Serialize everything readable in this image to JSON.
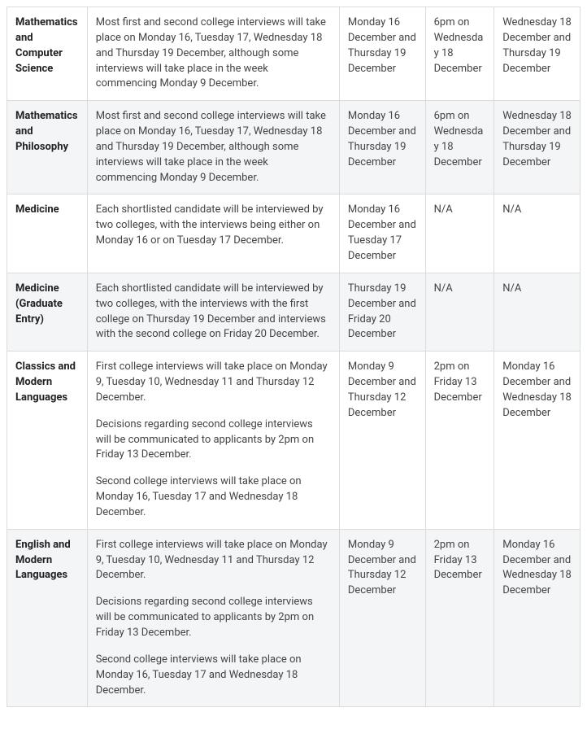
{
  "table": {
    "border_color": "#dcdcdc",
    "row_alt_bg": "#f3f5f7",
    "row_bg": "#ffffff",
    "text_color": "#333333",
    "rows": [
      {
        "alt": false,
        "subject": "Mathematics and Computer Science",
        "desc": [
          "Most first and second college interviews will take place on Monday 16, Tuesday 17, Wednesday 18 and Thursday 19 December, although some interviews will take place in the week commencing Monday 9 December."
        ],
        "col3": "Monday 16 December and Thursday 19 December",
        "col4": "6pm on Wednesday 18 December",
        "col5": "Wednesday 18 December and Thursday 19 December"
      },
      {
        "alt": true,
        "subject": "Mathematics and Philosophy",
        "desc": [
          "Most first and second college interviews will take place on Monday 16, Tuesday 17, Wednesday 18 and Thursday 19 December, although some interviews will take place in the week commencing Monday 9 December."
        ],
        "col3": "Monday 16 December and Thursday 19 December",
        "col4": "6pm on Wednesday 18 December",
        "col5": "Wednesday 18 December and Thursday 19 December"
      },
      {
        "alt": false,
        "subject": "Medicine",
        "desc": [
          "Each shortlisted candidate will be interviewed by two colleges, with the interviews being either on Monday 16 or on Tuesday 17 December."
        ],
        "col3": "Monday 16 December and Tuesday 17 December",
        "col4": "N/A",
        "col5": "N/A"
      },
      {
        "alt": true,
        "subject": "Medicine (Graduate Entry)",
        "desc": [
          "Each shortlisted candidate will be interviewed by two colleges, with the interviews with the first college on Thursday 19 December and interviews with the second college on Friday 20 December."
        ],
        "col3": "Thursday 19 December and Friday 20 December",
        "col4": "N/A",
        "col5": "N/A"
      },
      {
        "alt": false,
        "subject": "Classics and Modern Languages",
        "desc": [
          "First college interviews will take place on Monday 9, Tuesday 10, Wednesday 11 and Thursday 12 December.",
          "Decisions regarding second college interviews will be communicated to applicants by 2pm on Friday 13 December.",
          "Second college interviews will take place on Monday 16, Tuesday 17 and Wednesday 18 December."
        ],
        "col3": "Monday 9 December and Thursday 12 December",
        "col4": "2pm on Friday 13 December",
        "col5": "Monday 16 December and Wednesday 18 December"
      },
      {
        "alt": true,
        "subject": "English and Modern Languages",
        "desc": [
          "First college interviews will take place on Monday 9, Tuesday 10, Wednesday 11 and Thursday 12 December.",
          "Decisions regarding second college interviews will be communicated to applicants by 2pm on Friday 13 December.",
          "Second college interviews will take place on Monday 16, Tuesday 17 and Wednesday 18 December."
        ],
        "col3": "Monday 9 December and Thursday 12 December",
        "col4": "2pm on Friday 13 December",
        "col5": "Monday 16 December and Wednesday 18 December"
      }
    ]
  }
}
